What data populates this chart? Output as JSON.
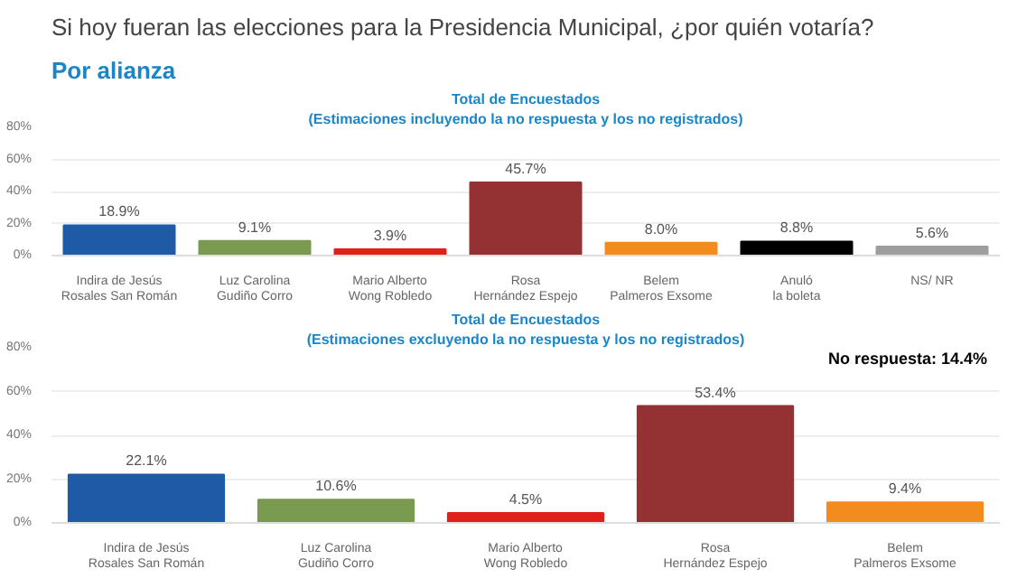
{
  "chart_data": [
    {
      "type": "bar",
      "title": "Total de Encuestados",
      "subtitle": "(Estimaciones incluyendo la no respuesta y los no registrados)",
      "annotations": [
        "Si hoy fueran las elecciones para la Presidencia Municipal, ¿por quién votaría?",
        "Por alianza"
      ],
      "categories": [
        "Indira de Jesús\nRosales San Román",
        "Luz Carolina\nGudiño Corro",
        "Mario Alberto\nWong Robledo",
        "Rosa\nHernández Espejo",
        "Belem\nPalmeros Exsome",
        "Anuló\nla boleta",
        "NS/ NR"
      ],
      "values": [
        18.9,
        9.1,
        3.9,
        45.7,
        8.0,
        8.8,
        5.6
      ],
      "value_labels": [
        "18.9%",
        "9.1%",
        "3.9%",
        "45.7%",
        "8.0%",
        "8.8%",
        "5.6%"
      ],
      "colors": [
        "#1f5aa6",
        "#7a9a50",
        "#e0201b",
        "#943233",
        "#f28c1e",
        "#000000",
        "#9e9e9e"
      ],
      "ylim": [
        0,
        80
      ],
      "yticks": [
        {
          "value": 0,
          "label": "0%"
        },
        {
          "value": 20,
          "label": "20%"
        },
        {
          "value": 40,
          "label": "40%"
        },
        {
          "value": 60,
          "label": "60%"
        },
        {
          "value": 80,
          "label": "80%"
        }
      ],
      "grid": "y"
    },
    {
      "type": "bar",
      "title": "Total de Encuestados",
      "subtitle": "(Estimaciones excluyendo la no respuesta y los no registrados)",
      "annotations": [
        "No respuesta: 14.4%"
      ],
      "categories": [
        "Indira de Jesús\nRosales San Román",
        "Luz Carolina\nGudiño Corro",
        "Mario Alberto\nWong Robledo",
        "Rosa\nHernández Espejo",
        "Belem\nPalmeros Exsome"
      ],
      "values": [
        22.1,
        10.6,
        4.5,
        53.4,
        9.4
      ],
      "value_labels": [
        "22.1%",
        "10.6%",
        "4.5%",
        "53.4%",
        "9.4%"
      ],
      "colors": [
        "#1f5aa6",
        "#7a9a50",
        "#e0201b",
        "#943233",
        "#f28c1e"
      ],
      "ylim": [
        0,
        80
      ],
      "yticks": [
        {
          "value": 0,
          "label": "0%"
        },
        {
          "value": 20,
          "label": "20%"
        },
        {
          "value": 40,
          "label": "40%"
        },
        {
          "value": 60,
          "label": "60%"
        },
        {
          "value": 80,
          "label": "80%"
        }
      ],
      "grid": "y"
    }
  ]
}
